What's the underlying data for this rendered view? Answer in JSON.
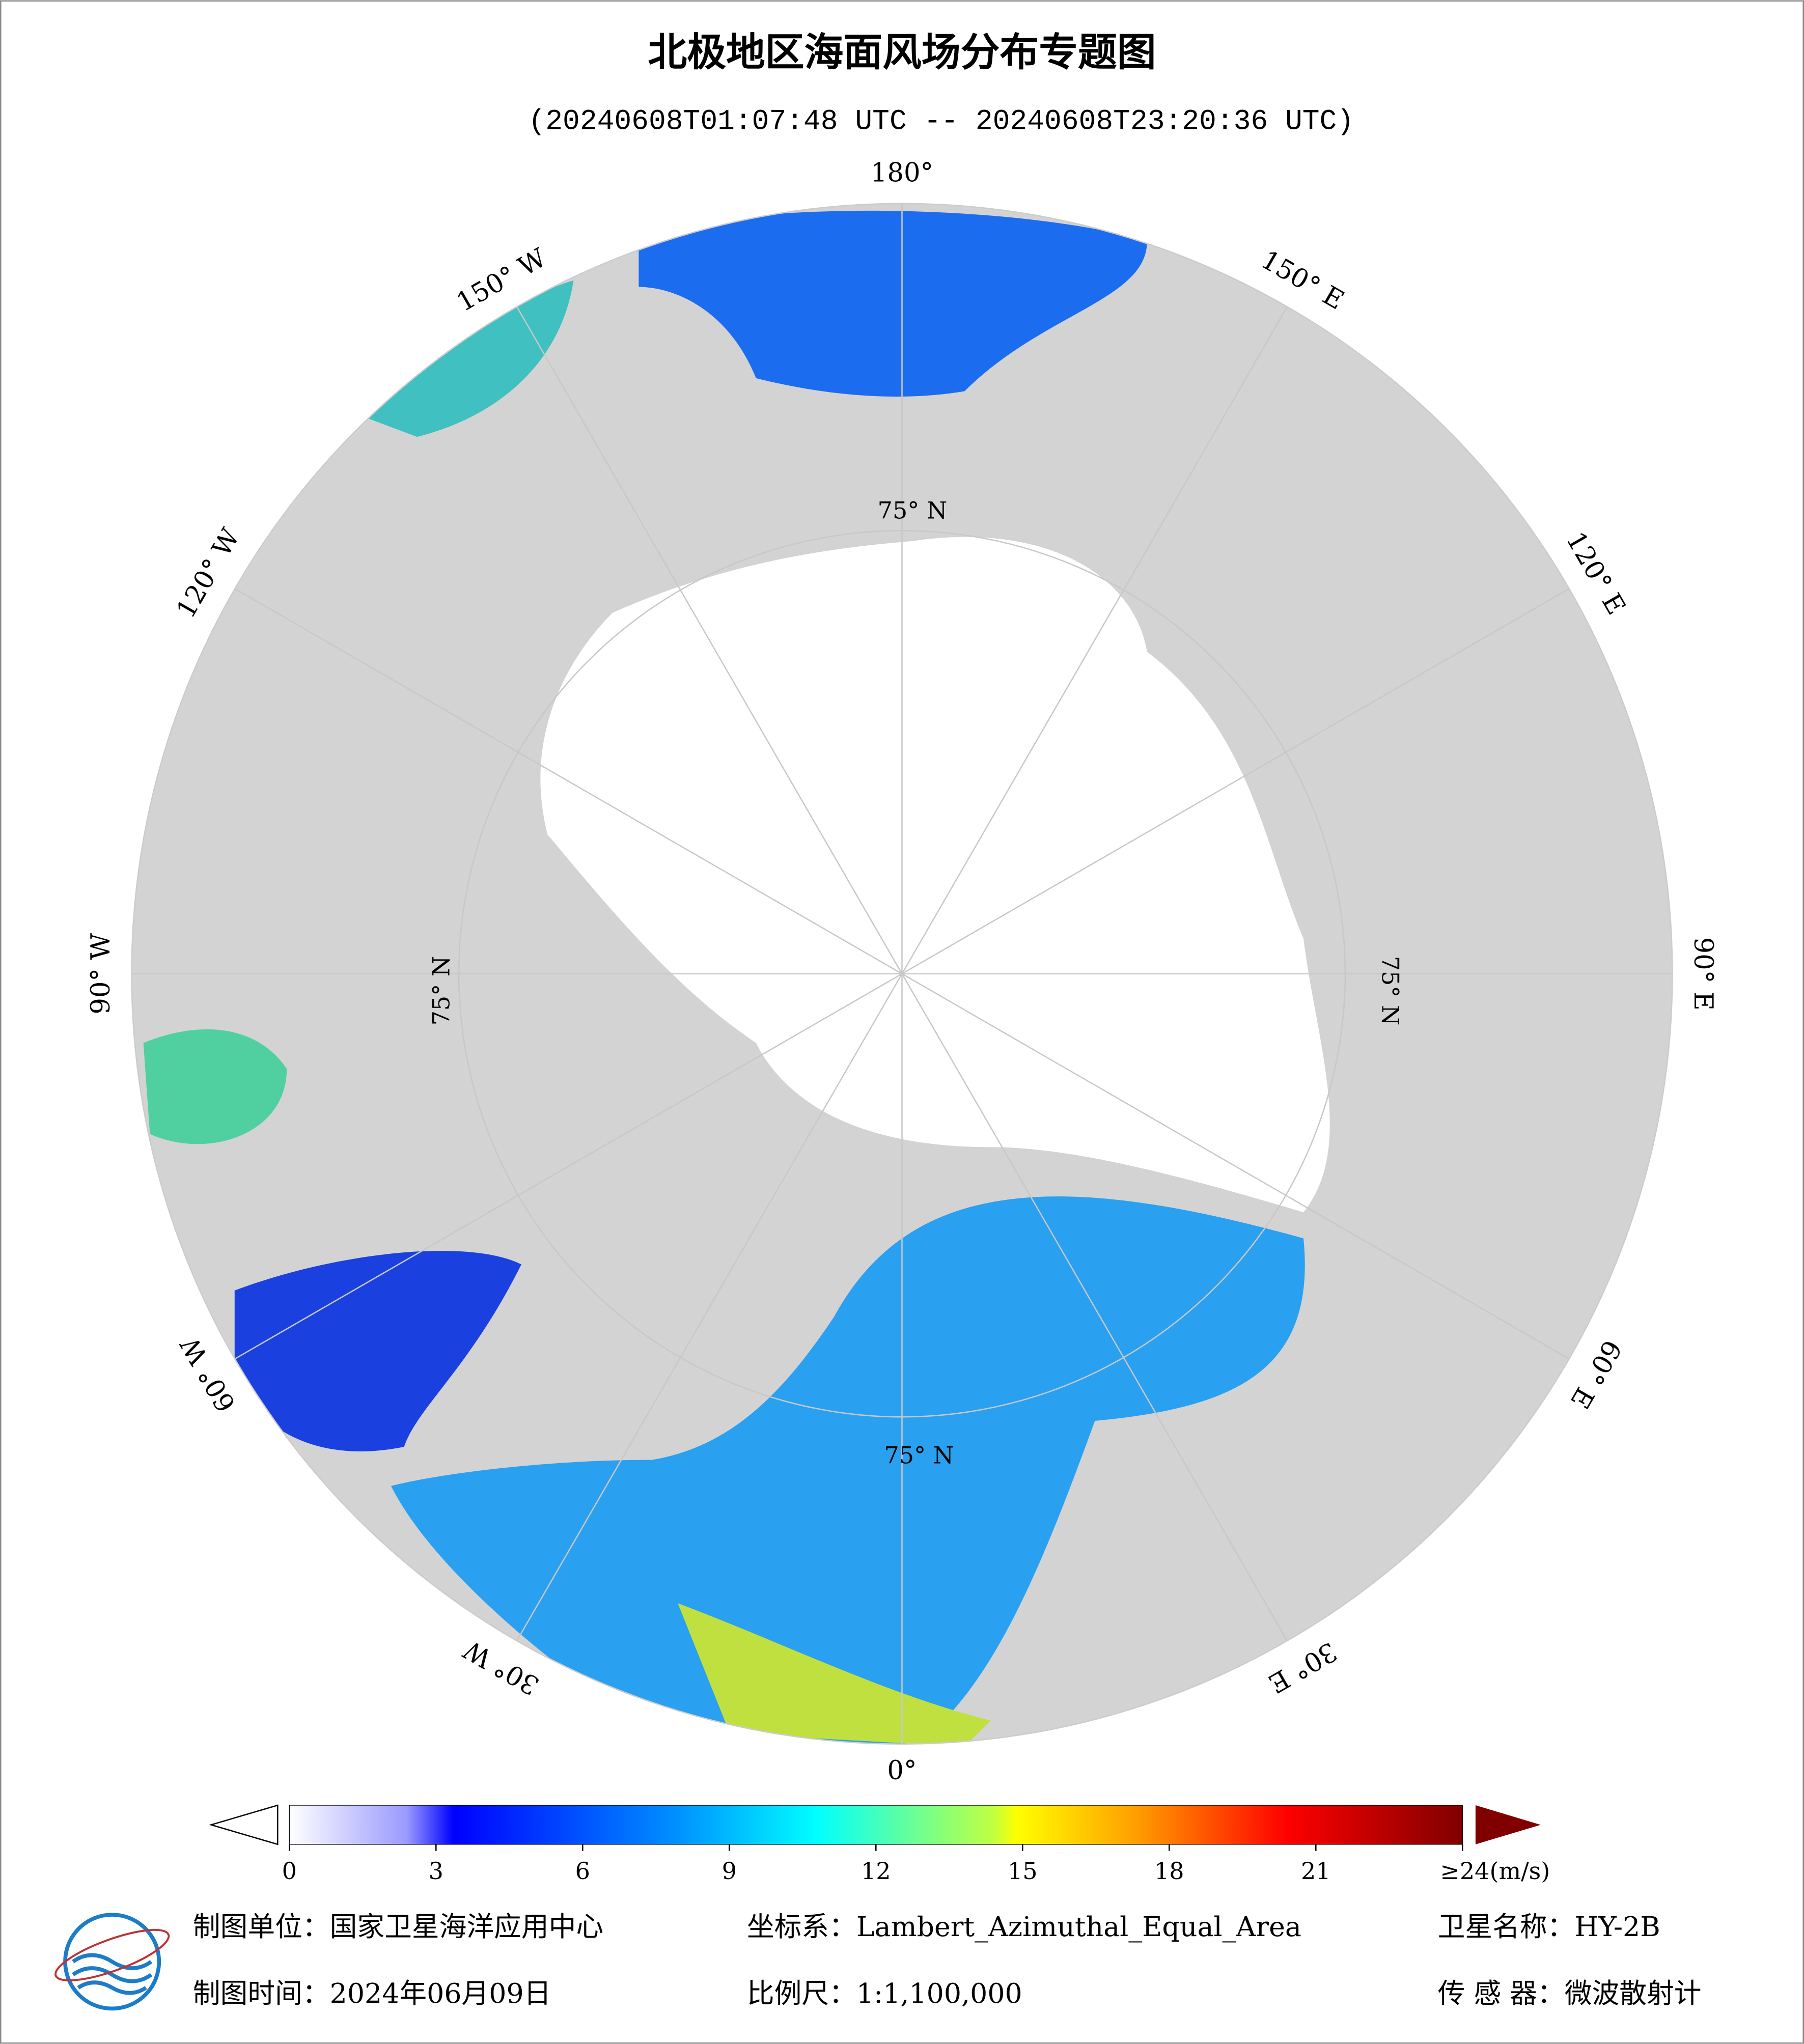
{
  "header": {
    "title": "北极地区海面风场分布专题图",
    "subtitle": "(20240608T01:07:48 UTC -- 20240608T23:20:36 UTC)"
  },
  "map": {
    "longitude_labels": [
      "0°",
      "30° E",
      "60° E",
      "90° E",
      "120° E",
      "150° E",
      "180°",
      "150° W",
      "120° W",
      "90° W",
      "60° W",
      "30° W"
    ],
    "latitude_labels": [
      "75° N",
      "75° N",
      "75° N",
      "75° N"
    ]
  },
  "colorbar": {
    "lim": [
      0,
      24
    ],
    "ticks": [
      0,
      3,
      6,
      9,
      12,
      15,
      18,
      21,
      {
        "value": 24,
        "label": "≥24(m/s)"
      }
    ]
  },
  "footer": {
    "items": [
      "制图单位：国家卫星海洋应用中心",
      "坐标系：Lambert_Azimuthal_Equal_Area",
      "卫星名称：HY-2B",
      "制图时间：2024年06月09日",
      "比例尺：1:1,100,000",
      "传 感 器：微波散射计"
    ]
  }
}
